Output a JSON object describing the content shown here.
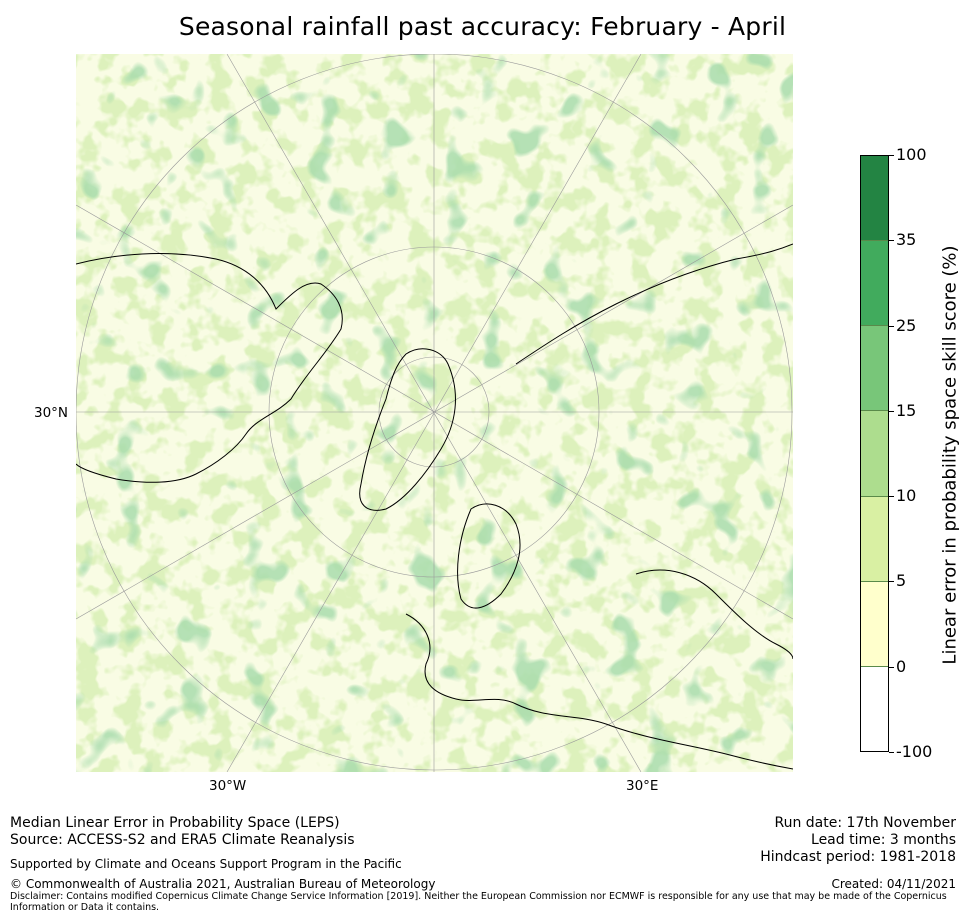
{
  "title": "Seasonal rainfall past accuracy: February - April",
  "map": {
    "projection": "north-polar-stereographic",
    "labels": {
      "lat_30n": "30°N",
      "lon_30w": "30°W",
      "lon_30e": "30°E"
    }
  },
  "colorbar": {
    "axis_label": "Linear error in probability space skill score (%)",
    "ticks": [
      "100",
      "35",
      "25",
      "15",
      "10",
      "5",
      "0",
      "-100"
    ],
    "bins": [
      {
        "range": "35 to 100",
        "color": "#238443"
      },
      {
        "range": "25 to 35",
        "color": "#41ab5d"
      },
      {
        "range": "15 to 25",
        "color": "#78c679"
      },
      {
        "range": "10 to 15",
        "color": "#addd8e"
      },
      {
        "range": "5 to 10",
        "color": "#d9f0a3"
      },
      {
        "range": "0 to 5",
        "color": "#ffffcc"
      },
      {
        "range": "-100 to 0",
        "color": "#ffffff"
      }
    ]
  },
  "footer": {
    "left_line1": "Median Linear Error in Probability Space (LEPS)",
    "left_line2": "Source: ACCESS-S2 and ERA5 Climate Reanalysis",
    "supported": "Supported by Climate and Oceans Support Program in the Pacific",
    "copyright": "© Commonwealth of Australia 2021, Australian Bureau of Meteorology",
    "disclaimer": "Disclaimer: Contains modified Copernicus Climate Change Service Information [2019]. Neither the European Commission nor ECMWF is responsible for any use that may be made of the Copernicus Information or Data it contains.",
    "run_date": "Run date: 17th November",
    "lead_time": "Lead time: 3 months",
    "hindcast": "Hindcast period: 1981-2018",
    "created": "Created: 04/11/2021"
  }
}
